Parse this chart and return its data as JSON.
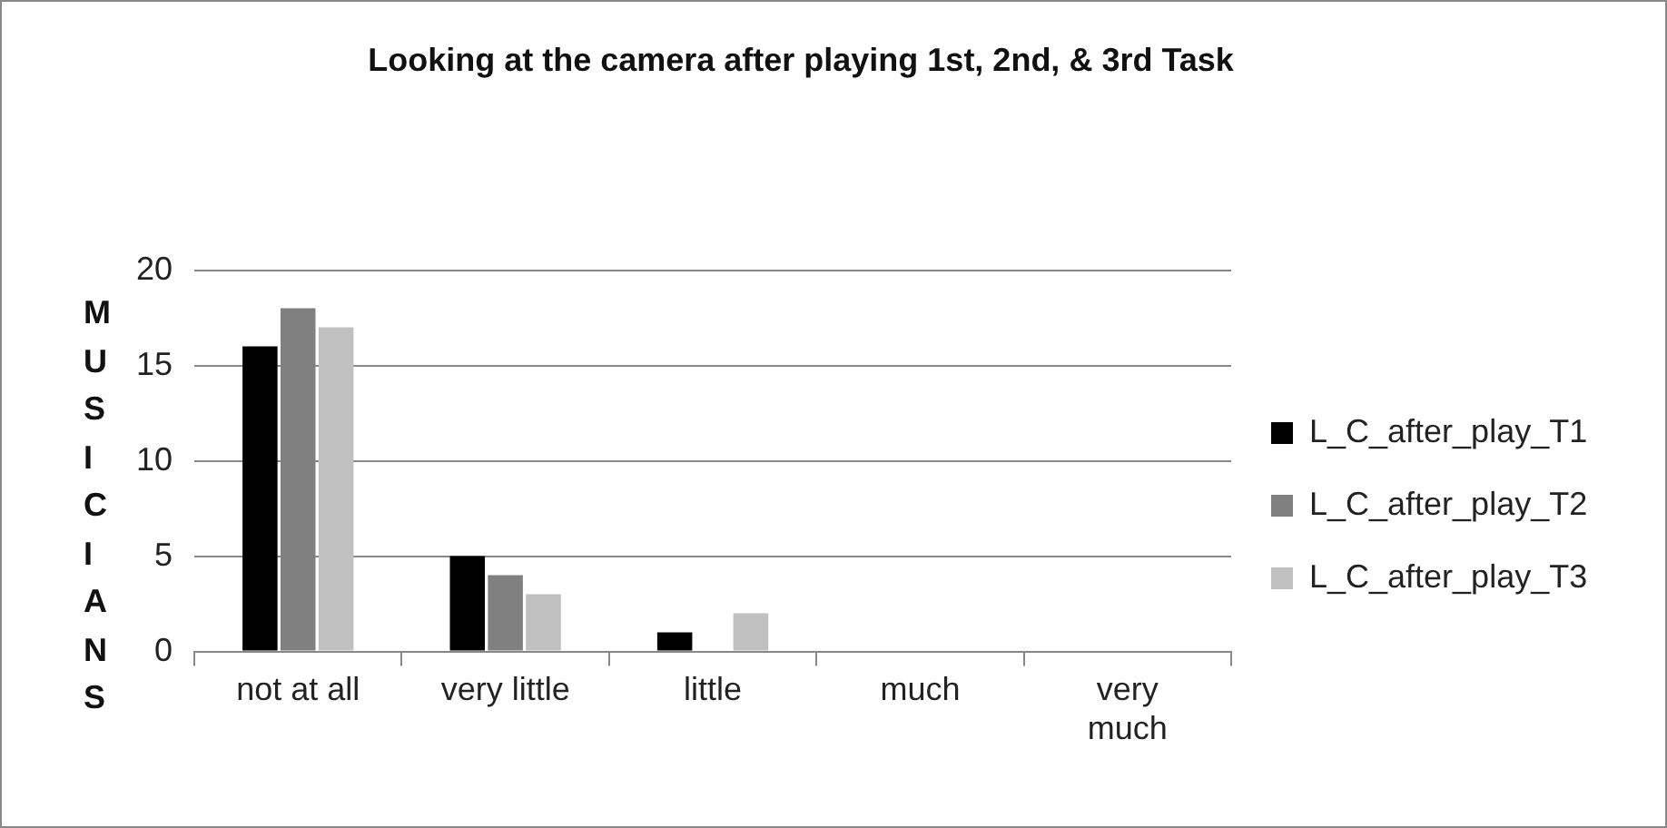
{
  "chart_data": {
    "type": "bar",
    "title": "Looking at the camera after playing 1st, 2nd, & 3rd Task",
    "ylabel": "MUSICIANS",
    "categories": [
      "not at all",
      "very little",
      "little",
      "much",
      "very much"
    ],
    "series": [
      {
        "name": "L_C_after_play_T1",
        "color": "#000000",
        "values": [
          16,
          5,
          1,
          0,
          0
        ]
      },
      {
        "name": "L_C_after_play_T2",
        "color": "#808080",
        "values": [
          18,
          4,
          0,
          0,
          0
        ]
      },
      {
        "name": "L_C_after_play_T3",
        "color": "#c0c0c0",
        "values": [
          17,
          3,
          2,
          0,
          0
        ]
      }
    ],
    "ylim": [
      0,
      20
    ],
    "yticks": [
      0,
      5,
      10,
      15,
      20
    ],
    "grid": "y",
    "legend": "right"
  }
}
